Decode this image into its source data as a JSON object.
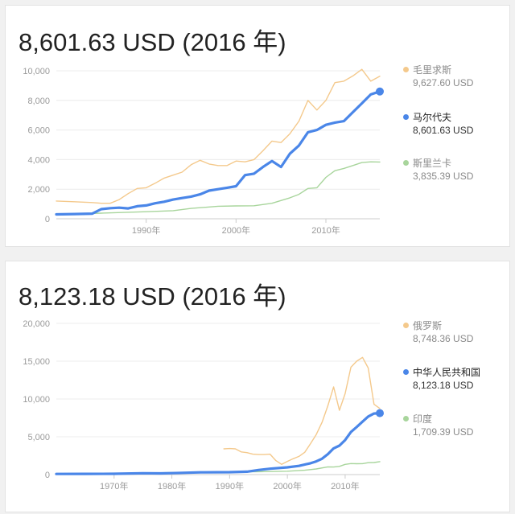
{
  "panels": [
    {
      "headline": "8,601.63 USD (2016 年)",
      "legend": [
        {
          "name": "毛里求斯",
          "value": "9,627.60 USD",
          "color": "#f4c98c",
          "active": false
        },
        {
          "name": "马尔代夫",
          "value": "8,601.63 USD",
          "color": "#4a86e8",
          "active": true
        },
        {
          "name": "斯里兰卡",
          "value": "3,835.39 USD",
          "color": "#a8d59c",
          "active": false
        }
      ]
    },
    {
      "headline": "8,123.18 USD (2016 年)",
      "legend": [
        {
          "name": "俄罗斯",
          "value": "8,748.36 USD",
          "color": "#f4c98c",
          "active": false
        },
        {
          "name": "中华人民共和国",
          "value": "8,123.18 USD",
          "color": "#4a86e8",
          "active": true
        },
        {
          "name": "印度",
          "value": "1,709.39 USD",
          "color": "#a8d59c",
          "active": false
        }
      ]
    }
  ],
  "chart_data": [
    {
      "type": "line",
      "title": "8,601.63 USD (2016 年)",
      "ylim": [
        0,
        10000
      ],
      "xlim": [
        1980,
        2016
      ],
      "y_ticks": [
        0,
        2000,
        4000,
        6000,
        8000,
        10000
      ],
      "y_tick_labels": [
        "0",
        "2,000",
        "4,000",
        "6,000",
        "8,000",
        "10,000"
      ],
      "x_ticks": [
        1990,
        2000,
        2010
      ],
      "x_tick_labels": [
        "1990年",
        "2000年",
        "2010年"
      ],
      "grid": "horizontal",
      "legend_position": "right",
      "series": [
        {
          "name": "毛里求斯",
          "color": "#f4c98c",
          "x": [
            1980,
            1982,
            1984,
            1985,
            1986,
            1987,
            1988,
            1989,
            1990,
            1991,
            1992,
            1993,
            1994,
            1995,
            1996,
            1997,
            1998,
            1999,
            2000,
            2001,
            2002,
            2003,
            2004,
            2005,
            2006,
            2007,
            2008,
            2009,
            2010,
            2011,
            2012,
            2013,
            2014,
            2015,
            2016
          ],
          "y": [
            1200,
            1150,
            1100,
            1050,
            1050,
            1300,
            1700,
            2050,
            2100,
            2400,
            2750,
            2950,
            3150,
            3650,
            3950,
            3700,
            3600,
            3600,
            3900,
            3850,
            4000,
            4600,
            5250,
            5150,
            5750,
            6600,
            8000,
            7350,
            8000,
            9200,
            9300,
            9650,
            10100,
            9300,
            9628
          ]
        },
        {
          "name": "马尔代夫",
          "color": "#4a86e8",
          "x": [
            1980,
            1982,
            1984,
            1985,
            1986,
            1987,
            1988,
            1989,
            1990,
            1991,
            1992,
            1993,
            1994,
            1995,
            1996,
            1997,
            1998,
            1999,
            2000,
            2001,
            2002,
            2003,
            2004,
            2005,
            2006,
            2007,
            2008,
            2009,
            2010,
            2011,
            2012,
            2013,
            2014,
            2015,
            2016
          ],
          "y": [
            300,
            320,
            350,
            650,
            720,
            750,
            700,
            850,
            900,
            1050,
            1150,
            1300,
            1400,
            1500,
            1650,
            1900,
            2000,
            2100,
            2200,
            2950,
            3050,
            3500,
            3900,
            3500,
            4400,
            4950,
            5850,
            6000,
            6350,
            6500,
            6600,
            7200,
            7800,
            8400,
            8602
          ]
        },
        {
          "name": "斯里兰卡",
          "color": "#a8d59c",
          "x": [
            1980,
            1985,
            1990,
            1993,
            1995,
            1998,
            2000,
            2002,
            2004,
            2006,
            2007,
            2008,
            2009,
            2010,
            2011,
            2012,
            2013,
            2014,
            2015,
            2016
          ],
          "y": [
            300,
            380,
            480,
            550,
            700,
            850,
            870,
            880,
            1050,
            1420,
            1650,
            2050,
            2100,
            2800,
            3250,
            3400,
            3600,
            3800,
            3850,
            3835
          ]
        }
      ]
    },
    {
      "type": "line",
      "title": "8,123.18 USD (2016 年)",
      "ylim": [
        0,
        20000
      ],
      "xlim": [
        1960,
        2016
      ],
      "y_ticks": [
        0,
        5000,
        10000,
        15000,
        20000
      ],
      "y_tick_labels": [
        "0",
        "5,000",
        "10,000",
        "15,000",
        "20,000"
      ],
      "x_ticks": [
        1970,
        1980,
        1990,
        2000,
        2010
      ],
      "x_tick_labels": [
        "1970年",
        "1980年",
        "1990年",
        "2000年",
        "2010年"
      ],
      "grid": "horizontal",
      "legend_position": "right",
      "series": [
        {
          "name": "俄罗斯",
          "color": "#f4c98c",
          "x": [
            1989,
            1990,
            1991,
            1992,
            1993,
            1994,
            1995,
            1996,
            1997,
            1998,
            1999,
            2000,
            2001,
            2002,
            2003,
            2004,
            2005,
            2006,
            2007,
            2008,
            2009,
            2010,
            2011,
            2012,
            2013,
            2014,
            2015,
            2016
          ],
          "y": [
            3400,
            3450,
            3400,
            3000,
            2900,
            2700,
            2650,
            2650,
            2700,
            1850,
            1350,
            1750,
            2100,
            2400,
            2950,
            4100,
            5300,
            6900,
            9100,
            11600,
            8500,
            10700,
            14200,
            15000,
            15500,
            14100,
            9300,
            8748
          ]
        },
        {
          "name": "中华人民共和国",
          "color": "#4a86e8",
          "x": [
            1960,
            1965,
            1970,
            1975,
            1978,
            1980,
            1985,
            1990,
            1993,
            1995,
            1997,
            2000,
            2002,
            2004,
            2005,
            2006,
            2007,
            2008,
            2009,
            2010,
            2011,
            2012,
            2013,
            2014,
            2015,
            2016
          ],
          "y": [
            90,
            100,
            110,
            180,
            155,
            195,
            295,
            320,
            380,
            610,
            780,
            960,
            1150,
            1500,
            1750,
            2100,
            2700,
            3470,
            3830,
            4560,
            5630,
            6300,
            7000,
            7680,
            8070,
            8123
          ]
        },
        {
          "name": "印度",
          "color": "#a8d59c",
          "x": [
            1960,
            1970,
            1980,
            1990,
            1995,
            2000,
            2003,
            2005,
            2007,
            2008,
            2009,
            2010,
            2011,
            2012,
            2013,
            2014,
            2015,
            2016
          ],
          "y": [
            80,
            110,
            270,
            370,
            380,
            450,
            570,
            740,
            1020,
            1000,
            1090,
            1350,
            1460,
            1440,
            1450,
            1570,
            1600,
            1709
          ]
        }
      ]
    }
  ]
}
